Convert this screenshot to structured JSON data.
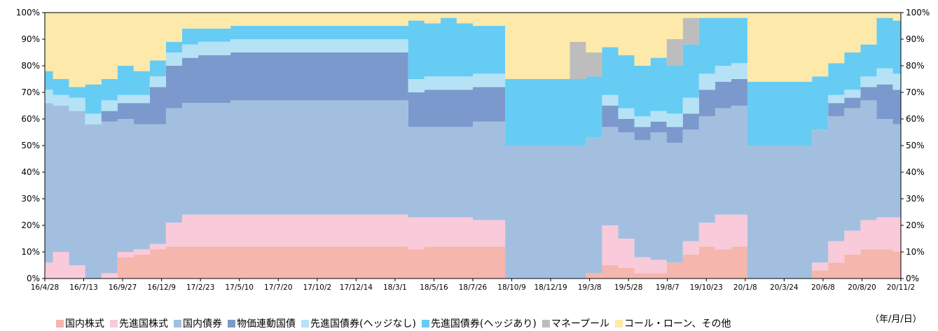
{
  "chart_data": {
    "type": "area",
    "stacked": true,
    "normalized_percent": true,
    "x_ticks": [
      "16/4/28",
      "16/7/13",
      "16/9/27",
      "16/12/9",
      "17/2/23",
      "17/5/10",
      "17/7/20",
      "17/10/2",
      "17/12/14",
      "18/3/1",
      "18/5/16",
      "18/7/26",
      "18/10/9",
      "18/12/19",
      "19/3/8",
      "19/5/28",
      "19/8/7",
      "19/10/23",
      "20/1/8",
      "20/3/24",
      "20/6/8",
      "20/8/20",
      "20/11/2"
    ],
    "y_ticks": [
      "0%",
      "10%",
      "20%",
      "30%",
      "40%",
      "50%",
      "60%",
      "70%",
      "80%",
      "90%",
      "100%"
    ],
    "ylim": [
      0,
      100
    ],
    "unit_label": "（年/月/日）",
    "legend_position": "bottom",
    "series": [
      {
        "name": "国内株式",
        "color": "#f4b6ad",
        "values": [
          0,
          0,
          0,
          0,
          0,
          8,
          9,
          11,
          12,
          12,
          12,
          12,
          12,
          12,
          12,
          12,
          12,
          12,
          12,
          12,
          12,
          12,
          12,
          11,
          12,
          12,
          12,
          12,
          12,
          0,
          0,
          0,
          0,
          0,
          2,
          5,
          4,
          2,
          2,
          6,
          9,
          12,
          11,
          12,
          0,
          0,
          0,
          0,
          3,
          6,
          9,
          11,
          11,
          10
        ]
      },
      {
        "name": "先進国株式",
        "color": "#f9cad9",
        "values": [
          6,
          10,
          5,
          0,
          2,
          2,
          2,
          2,
          9,
          12,
          12,
          12,
          12,
          12,
          12,
          12,
          12,
          12,
          12,
          12,
          12,
          12,
          12,
          12,
          11,
          11,
          11,
          10,
          10,
          0,
          0,
          0,
          0,
          0,
          0,
          15,
          11,
          6,
          5,
          0,
          5,
          9,
          13,
          12,
          0,
          0,
          0,
          0,
          3,
          8,
          9,
          11,
          12,
          13
        ]
      },
      {
        "name": "国内債券",
        "color": "#a3bfe0",
        "values": [
          60,
          55,
          58,
          58,
          57,
          50,
          47,
          45,
          43,
          42,
          42,
          42,
          43,
          43,
          43,
          43,
          43,
          43,
          43,
          43,
          43,
          43,
          43,
          34,
          34,
          34,
          34,
          37,
          37,
          50,
          50,
          50,
          50,
          50,
          51,
          37,
          40,
          44,
          48,
          45,
          42,
          40,
          40,
          41,
          50,
          50,
          50,
          50,
          50,
          47,
          46,
          45,
          37,
          35
        ]
      },
      {
        "name": "物価連動国債",
        "color": "#7b99cc",
        "values": [
          0,
          0,
          0,
          0,
          4,
          6,
          8,
          14,
          16,
          17,
          18,
          18,
          18,
          18,
          18,
          18,
          18,
          18,
          18,
          18,
          18,
          18,
          18,
          13,
          14,
          14,
          14,
          13,
          13,
          0,
          0,
          0,
          0,
          0,
          0,
          8,
          5,
          5,
          4,
          6,
          6,
          10,
          10,
          10,
          0,
          0,
          0,
          0,
          0,
          5,
          4,
          5,
          13,
          13
        ]
      },
      {
        "name": "先進国債券(ヘッジなし)",
        "color": "#b6e2f6",
        "values": [
          5,
          4,
          5,
          4,
          4,
          3,
          3,
          4,
          5,
          5,
          5,
          5,
          5,
          5,
          5,
          5,
          5,
          5,
          5,
          5,
          5,
          5,
          5,
          5,
          5,
          5,
          5,
          5,
          5,
          0,
          0,
          0,
          0,
          0,
          0,
          4,
          4,
          4,
          4,
          5,
          6,
          6,
          6,
          6,
          0,
          0,
          0,
          0,
          0,
          3,
          3,
          4,
          6,
          6
        ]
      },
      {
        "name": "先進国債券(ヘッジあり)",
        "color": "#66ccf3",
        "values": [
          7,
          6,
          4,
          11,
          8,
          11,
          9,
          6,
          4,
          6,
          5,
          5,
          5,
          5,
          5,
          5,
          5,
          5,
          5,
          5,
          5,
          5,
          5,
          22,
          20,
          22,
          20,
          18,
          18,
          25,
          25,
          25,
          25,
          25,
          23,
          18,
          20,
          19,
          20,
          18,
          20,
          21,
          18,
          17,
          24,
          24,
          24,
          24,
          20,
          12,
          14,
          12,
          19,
          20
        ]
      },
      {
        "name": "マネープール",
        "color": "#bdbdbd",
        "values": [
          0,
          0,
          0,
          0,
          0,
          0,
          0,
          0,
          0,
          0,
          0,
          0,
          0,
          0,
          0,
          0,
          0,
          0,
          0,
          0,
          0,
          0,
          0,
          0,
          0,
          0,
          0,
          0,
          0,
          0,
          0,
          0,
          0,
          14,
          9,
          0,
          0,
          0,
          0,
          10,
          10,
          0,
          0,
          0,
          0,
          0,
          0,
          0,
          0,
          0,
          0,
          0,
          0,
          0
        ]
      },
      {
        "name": "コール・ローン、その他",
        "color": "#fde9a9",
        "values": [
          22,
          25,
          28,
          27,
          25,
          20,
          22,
          18,
          11,
          6,
          6,
          6,
          5,
          5,
          5,
          5,
          5,
          5,
          5,
          5,
          5,
          5,
          5,
          3,
          4,
          2,
          4,
          5,
          5,
          25,
          25,
          25,
          25,
          11,
          15,
          13,
          16,
          20,
          17,
          10,
          2,
          2,
          2,
          2,
          26,
          26,
          26,
          26,
          24,
          19,
          15,
          12,
          2,
          3
        ]
      }
    ]
  }
}
